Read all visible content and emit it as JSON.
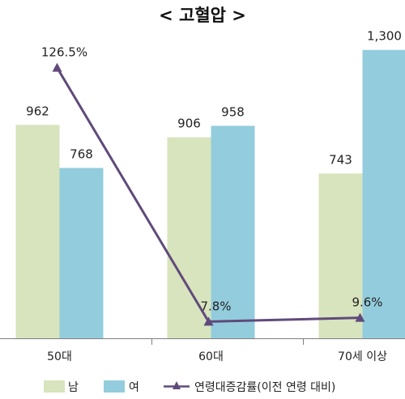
{
  "chart_data": {
    "type": "bar",
    "title": "< 고혈압 >",
    "categories": [
      "50대",
      "60대",
      "70세 이상"
    ],
    "series": [
      {
        "name": "남",
        "type": "bar",
        "color": "#d7e4bd",
        "values": [
          962,
          906,
          743
        ],
        "labels": [
          "962",
          "906",
          "743"
        ]
      },
      {
        "name": "여",
        "type": "bar",
        "color": "#93cddd",
        "values": [
          768,
          958,
          1300
        ],
        "labels": [
          "768",
          "958",
          "1,300"
        ]
      },
      {
        "name": "연령대증감률(이전 연령 대비)",
        "type": "line",
        "color": "#604a7b",
        "axis": "secondary",
        "values": [
          126.5,
          7.8,
          9.6
        ],
        "labels": [
          "126.5%",
          "7.8%",
          "9.6%"
        ]
      }
    ],
    "ylim": [
      0,
      1350
    ],
    "y2lim": [
      0,
      140
    ],
    "grid": false,
    "legend": "bottom"
  }
}
